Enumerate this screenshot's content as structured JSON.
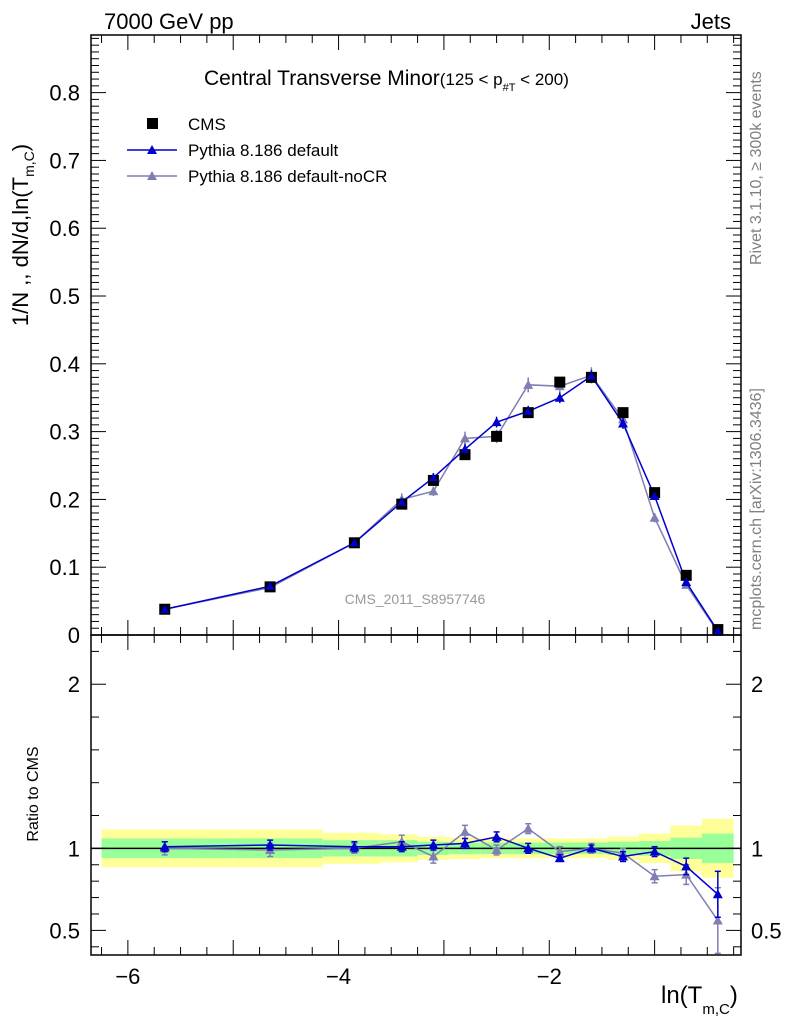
{
  "header": {
    "left": "7000 GeV pp",
    "right": "Jets"
  },
  "chart_data": {
    "type": "line",
    "title_main": "Central Transverse Minor",
    "title_cut_prefix": "(125 < p",
    "title_cut_sub": "#T",
    "title_cut_suffix": " < 200)",
    "xlabel_main": "ln(T",
    "xlabel_sub": "m,C",
    "xlabel_close": ")",
    "ylabel_main": "1/N ,, dN/d,ln(T",
    "ylabel_sub": "m,C",
    "ylabel_close": ")",
    "ratio_ylabel": "Ratio to CMS",
    "side_label_top": "Rivet 3.1.10, ≥ 300k events",
    "side_label_bottom": "mcplots.cern.ch [arXiv:1306.3436]",
    "watermark": "CMS_2011_S8957746",
    "xlim": [
      -6.35,
      -0.18
    ],
    "ylim": [
      0,
      0.885
    ],
    "ratio_ylim": [
      0.35,
      2.3
    ],
    "x_ticks": [
      {
        "value": -6,
        "label": "−6"
      },
      {
        "value": -4,
        "label": "−4"
      },
      {
        "value": -2,
        "label": "−2"
      }
    ],
    "y_ticks": [
      {
        "value": 0,
        "label": "0"
      },
      {
        "value": 0.1,
        "label": "0.1"
      },
      {
        "value": 0.2,
        "label": "0.2"
      },
      {
        "value": 0.3,
        "label": "0.3"
      },
      {
        "value": 0.4,
        "label": "0.4"
      },
      {
        "value": 0.5,
        "label": "0.5"
      },
      {
        "value": 0.6,
        "label": "0.6"
      },
      {
        "value": 0.7,
        "label": "0.7"
      },
      {
        "value": 0.8,
        "label": "0.8"
      }
    ],
    "ratio_y_ticks": [
      {
        "value": 0.5,
        "label": "0.5"
      },
      {
        "value": 1,
        "label": "1"
      },
      {
        "value": 2,
        "label": "2"
      }
    ],
    "x": [
      -5.65,
      -4.65,
      -3.85,
      -3.4,
      -3.1,
      -2.8,
      -2.5,
      -2.2,
      -1.9,
      -1.6,
      -1.3,
      -1.0,
      -0.7,
      -0.4
    ],
    "band_edges": [
      -6.25,
      -5.0,
      -4.15,
      -3.6,
      -3.25,
      -2.95,
      -2.65,
      -2.35,
      -2.05,
      -1.75,
      -1.45,
      -1.15,
      -0.85,
      -0.55,
      -0.25
    ],
    "band_inner": [
      0.06,
      0.06,
      0.05,
      0.05,
      0.04,
      0.035,
      0.035,
      0.035,
      0.035,
      0.035,
      0.04,
      0.045,
      0.065,
      0.09
    ],
    "band_outer": [
      0.115,
      0.115,
      0.095,
      0.085,
      0.07,
      0.065,
      0.06,
      0.06,
      0.06,
      0.06,
      0.07,
      0.09,
      0.14,
      0.18
    ],
    "series": [
      {
        "name": "CMS",
        "color": "#000000",
        "marker": "square",
        "values": [
          0.038,
          0.071,
          0.136,
          0.193,
          0.228,
          0.266,
          0.293,
          0.328,
          0.373,
          0.38,
          0.328,
          0.21,
          0.088,
          0.008
        ]
      },
      {
        "name": "Pythia 8.186 default",
        "color": "#0000cc",
        "marker": "triangle",
        "values": [
          0.038,
          0.072,
          0.136,
          0.196,
          0.232,
          0.274,
          0.314,
          0.33,
          0.35,
          0.382,
          0.312,
          0.205,
          0.078,
          0.0058
        ],
        "errors": [
          0.002,
          0.003,
          0.004,
          0.006,
          0.007,
          0.008,
          0.008,
          0.008,
          0.008,
          0.009,
          0.008,
          0.006,
          0.003,
          0.001
        ],
        "ratio": [
          1.01,
          1.02,
          1.01,
          1.01,
          1.02,
          1.03,
          1.07,
          1.0,
          0.94,
          1.0,
          0.95,
          0.98,
          0.89,
          0.72
        ],
        "ratio_errors": [
          0.03,
          0.03,
          0.03,
          0.03,
          0.03,
          0.03,
          0.03,
          0.03,
          0.02,
          0.02,
          0.03,
          0.03,
          0.05,
          0.14
        ]
      },
      {
        "name": "Pythia 8.186 default-noCR",
        "color": "#7f7fb2",
        "marker": "triangle",
        "values": [
          0.038,
          0.07,
          0.136,
          0.2,
          0.212,
          0.29,
          0.293,
          0.369,
          0.367,
          0.383,
          0.318,
          0.173,
          0.074,
          0.0045
        ],
        "errors": [
          0.002,
          0.003,
          0.004,
          0.009,
          0.007,
          0.01,
          0.01,
          0.011,
          0.009,
          0.012,
          0.009,
          0.007,
          0.004,
          0.002
        ],
        "ratio": [
          1.0,
          0.99,
          1.0,
          1.04,
          0.95,
          1.1,
          0.99,
          1.12,
          0.98,
          1.0,
          0.97,
          0.83,
          0.84,
          0.56
        ],
        "ratio_errors": [
          0.04,
          0.04,
          0.03,
          0.04,
          0.04,
          0.04,
          0.03,
          0.03,
          0.03,
          0.03,
          0.03,
          0.04,
          0.06,
          0.2
        ]
      }
    ]
  }
}
